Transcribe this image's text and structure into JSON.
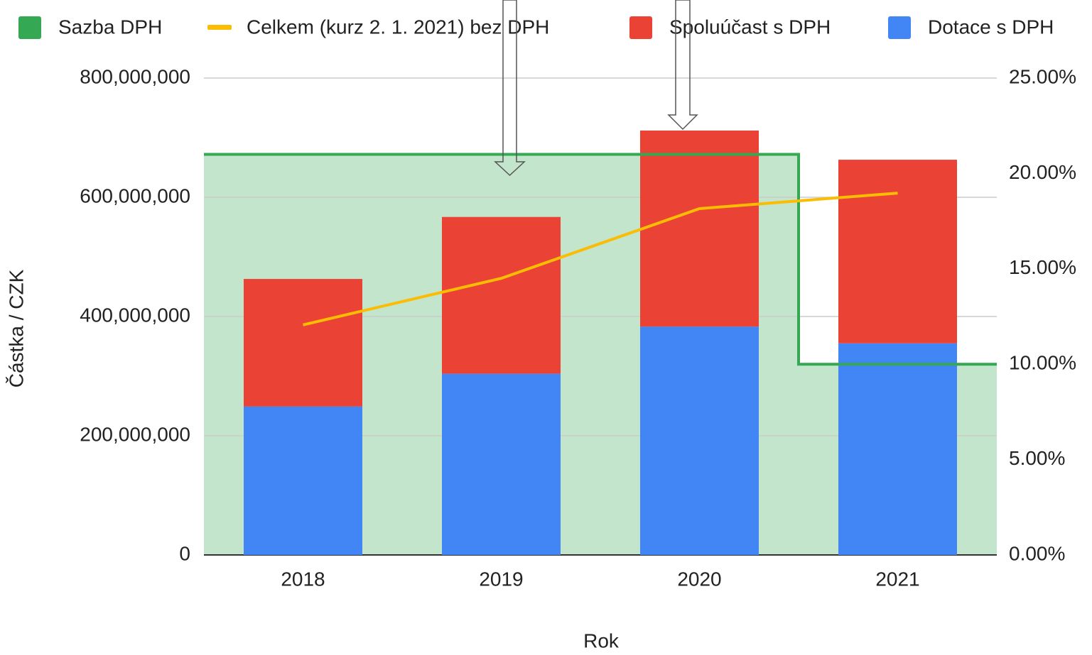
{
  "chart_data": {
    "type": "combo",
    "x_label": "Rok",
    "y_label": "Částka / CZK",
    "categories": [
      "2018",
      "2019",
      "2020",
      "2021"
    ],
    "series": [
      {
        "name": "Sazba DPH",
        "type": "stepped_area",
        "axis": "y2",
        "color": "#34a853",
        "values": [
          21,
          21,
          21,
          10
        ]
      },
      {
        "name": "Celkem (kurz 2. 1. 2021) bez DPH",
        "type": "line",
        "color": "#fbbc04",
        "values": [
          386000000,
          464000000,
          581000000,
          607000000
        ]
      },
      {
        "name": "Spoluúčast s DPH",
        "type": "bar",
        "stack": "a",
        "color": "#ea4335",
        "values": [
          214000000,
          263000000,
          329000000,
          308000000
        ]
      },
      {
        "name": "Dotace s DPH",
        "type": "bar",
        "stack": "a",
        "color": "#4285f4",
        "values": [
          249000000,
          304000000,
          383000000,
          355000000
        ]
      }
    ],
    "ylim": [
      0,
      800000000
    ],
    "yticks": [
      0,
      {
        "value": 200000000,
        "label": "200,000,000"
      },
      {
        "value": 400000000,
        "label": "400,000,000"
      },
      {
        "value": 600000000,
        "label": "600,000,000"
      },
      {
        "value": 800000000,
        "label": "800,000,000"
      }
    ],
    "y2lim": [
      0,
      25
    ],
    "y2ticks": [
      {
        "value": 0,
        "label": "0.00%"
      },
      {
        "value": 5,
        "label": "5.00%"
      },
      {
        "value": 10,
        "label": "10.00%"
      },
      {
        "value": 15,
        "label": "15.00%"
      },
      {
        "value": 20,
        "label": "20.00%"
      },
      {
        "value": 25,
        "label": "25.00%"
      }
    ],
    "grid": true,
    "legend": "top"
  }
}
